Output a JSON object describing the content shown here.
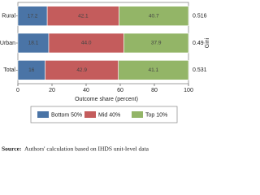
{
  "chart_data": {
    "type": "stacked-hbar",
    "categories": [
      "Rural",
      "Urban",
      "Total"
    ],
    "series": [
      {
        "name": "Bottom 50%",
        "color": "#4a74a6",
        "values": [
          17.2,
          18.1,
          16
        ]
      },
      {
        "name": "Mid 40%",
        "color": "#c45c5c",
        "values": [
          42.1,
          44.0,
          42.9
        ],
        "value_labels": [
          "42.1",
          "44.0",
          "42.9"
        ]
      },
      {
        "name": "Top 10%",
        "color": "#93b567",
        "values": [
          40.7,
          37.9,
          41.1
        ]
      }
    ],
    "xlabel": "Outcome share (percent)",
    "xlim": [
      0,
      100
    ],
    "xticks": [
      0,
      20,
      40,
      60,
      80,
      100
    ],
    "gini": {
      "title": "Gini",
      "values": [
        0.516,
        0.49,
        0.531
      ]
    },
    "legend": "bottom",
    "source_label": "Source:",
    "source": "Authors' calculation based on IHDS unit-level data"
  }
}
